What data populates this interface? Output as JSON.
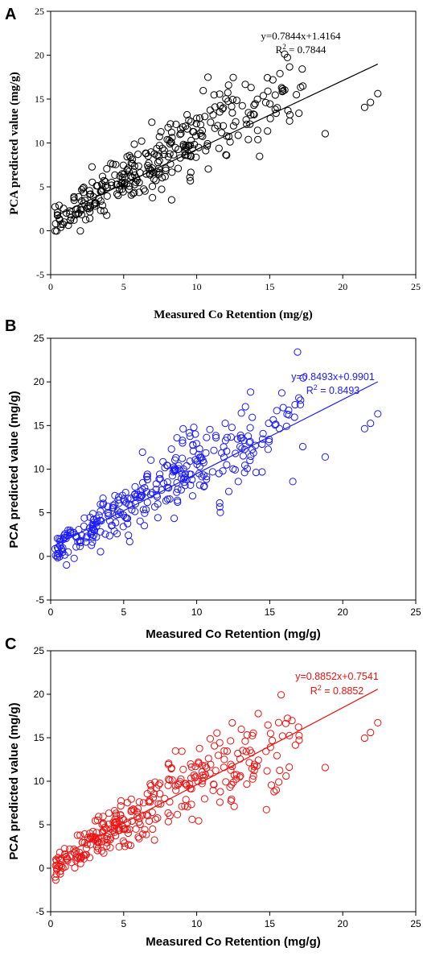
{
  "chart_data": [
    {
      "panel": "A",
      "type": "scatter",
      "xlabel": "Measured Co Retention (mg/g)",
      "ylabel": "PCA predicted value (mg/g)",
      "xlim": [
        0,
        25
      ],
      "ylim": [
        -5,
        25
      ],
      "xticks": [
        "0",
        "5",
        "10",
        "15",
        "20",
        "25"
      ],
      "yticks": [
        "-5",
        "0",
        "5",
        "10",
        "15",
        "20",
        "25"
      ],
      "color": "#000000",
      "fit": {
        "slope": 0.7844,
        "intercept": 1.4164,
        "x_range": [
          0.3,
          22.4
        ]
      },
      "equation": "y=0.7844x+1.4164",
      "r2_label": "R",
      "r2_value": " = 0.7844",
      "seed": 11
    },
    {
      "panel": "B",
      "type": "scatter",
      "xlabel": "Measured Co Retention (mg/g)",
      "ylabel": "PCA predicted value (mg/g)",
      "xlim": [
        0,
        25
      ],
      "ylim": [
        -5,
        25
      ],
      "xticks": [
        "0",
        "5",
        "10",
        "15",
        "20",
        "25"
      ],
      "yticks": [
        "-5",
        "0",
        "5",
        "10",
        "15",
        "20",
        "25"
      ],
      "color": "#1a1aff",
      "fit": {
        "slope": 0.8493,
        "intercept": 0.9901,
        "x_range": [
          0.3,
          22.4
        ]
      },
      "equation": "y=0.8493x+0.9901",
      "r2_label": "R",
      "r2_value": " = 0.8493",
      "seed": 23
    },
    {
      "panel": "C",
      "type": "scatter",
      "xlabel": "Measured Co Retention (mg/g)",
      "ylabel": "PCA predicted value (mg/g)",
      "xlim": [
        0,
        25
      ],
      "ylim": [
        -5,
        25
      ],
      "xticks": [
        "0",
        "5",
        "10",
        "15",
        "20",
        "25"
      ],
      "yticks": [
        "-5",
        "0",
        "5",
        "10",
        "15",
        "20",
        "25"
      ],
      "color": "#ee1111",
      "fit": {
        "slope": 0.8852,
        "intercept": 0.7541,
        "x_range": [
          0.3,
          22.4
        ]
      },
      "equation": "y=0.8852x+0.7541",
      "r2_label": "R",
      "r2_value": " = 0.8852",
      "seed": 37
    }
  ]
}
